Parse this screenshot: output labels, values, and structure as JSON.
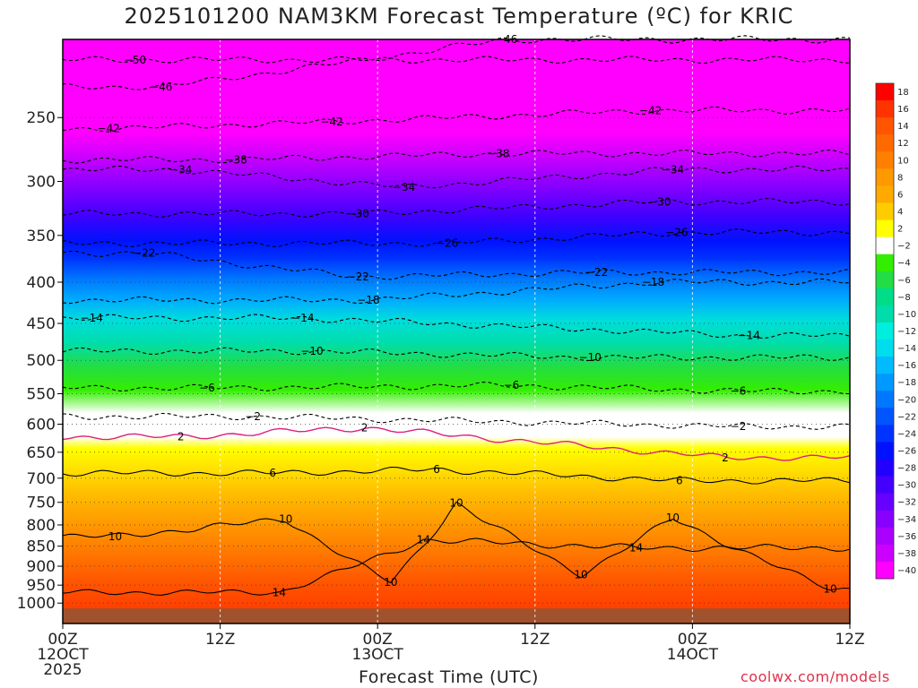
{
  "chart_data": {
    "type": "heatmap",
    "title": "2025101200 NAM3KM Forecast Temperature (ºC) for KRIC",
    "xlabel": "Forecast Time (UTC)",
    "ylabel": "",
    "credit": "coolwx.com/models",
    "y_axis": {
      "scale": "log-pressure",
      "ticks": [
        250,
        300,
        350,
        400,
        450,
        500,
        550,
        600,
        650,
        700,
        750,
        800,
        850,
        900,
        950,
        1000
      ]
    },
    "x_axis": {
      "range_hours": [
        0,
        60
      ],
      "ticks": [
        {
          "hour": 0,
          "label": "00Z",
          "sub": "12OCT",
          "year": "2025"
        },
        {
          "hour": 12,
          "label": "12Z",
          "sub": "",
          "year": ""
        },
        {
          "hour": 24,
          "label": "00Z",
          "sub": "13OCT",
          "year": ""
        },
        {
          "hour": 36,
          "label": "12Z",
          "sub": "",
          "year": ""
        },
        {
          "hour": 48,
          "label": "00Z",
          "sub": "14OCT",
          "year": ""
        },
        {
          "hour": 60,
          "label": "12Z",
          "sub": "",
          "year": ""
        }
      ]
    },
    "colorbar": {
      "labels": [
        18,
        16,
        14,
        12,
        10,
        8,
        6,
        4,
        2,
        -2,
        -4,
        -6,
        -8,
        -10,
        -12,
        -14,
        -16,
        -18,
        -20,
        -22,
        -24,
        -26,
        -28,
        -30,
        -32,
        -34,
        -36,
        -38,
        -40
      ],
      "colors": [
        "#ff0000",
        "#ff3300",
        "#ff5500",
        "#ff6a00",
        "#ff8000",
        "#ff9900",
        "#ffaa00",
        "#ffcc00",
        "#ffff00",
        "#ffffff",
        "#33ee00",
        "#22dd44",
        "#00dd88",
        "#00ddaa",
        "#00eedd",
        "#00ddee",
        "#00bbff",
        "#0099ff",
        "#0077ff",
        "#0055ff",
        "#0033ff",
        "#0011ff",
        "#2200ff",
        "#4400ff",
        "#6600ff",
        "#8800ff",
        "#aa00ff",
        "#cc00ff",
        "#ff00ff"
      ]
    },
    "contour_labels": [
      {
        "value": -50,
        "hour": 5.5,
        "p": 212
      },
      {
        "value": -46,
        "hour": 7.5,
        "p": 229
      },
      {
        "value": -46,
        "hour": 33.8,
        "p": 200
      },
      {
        "value": -42,
        "hour": 3.5,
        "p": 258
      },
      {
        "value": -42,
        "hour": 20.5,
        "p": 253
      },
      {
        "value": -42,
        "hour": 44.8,
        "p": 245
      },
      {
        "value": -38,
        "hour": 13.2,
        "p": 282
      },
      {
        "value": -38,
        "hour": 33.2,
        "p": 277
      },
      {
        "value": -34,
        "hour": 9.0,
        "p": 290
      },
      {
        "value": -34,
        "hour": 26.0,
        "p": 305
      },
      {
        "value": -34,
        "hour": 46.5,
        "p": 290
      },
      {
        "value": -30,
        "hour": 22.5,
        "p": 329
      },
      {
        "value": -30,
        "hour": 45.5,
        "p": 318
      },
      {
        "value": -26,
        "hour": 29.3,
        "p": 358
      },
      {
        "value": -26,
        "hour": 46.8,
        "p": 347
      },
      {
        "value": -22,
        "hour": 6.2,
        "p": 368
      },
      {
        "value": -22,
        "hour": 22.5,
        "p": 394
      },
      {
        "value": -22,
        "hour": 40.7,
        "p": 389
      },
      {
        "value": -18,
        "hour": 23.3,
        "p": 421
      },
      {
        "value": -18,
        "hour": 45.0,
        "p": 400
      },
      {
        "value": -14,
        "hour": 2.2,
        "p": 443
      },
      {
        "value": -14,
        "hour": 18.3,
        "p": 443
      },
      {
        "value": -14,
        "hour": 52.3,
        "p": 466
      },
      {
        "value": -10,
        "hour": 19.0,
        "p": 487
      },
      {
        "value": -10,
        "hour": 40.2,
        "p": 496
      },
      {
        "value": -6,
        "hour": 11.0,
        "p": 541
      },
      {
        "value": -6,
        "hour": 34.2,
        "p": 537
      },
      {
        "value": -6,
        "hour": 51.5,
        "p": 546
      },
      {
        "value": -2,
        "hour": 14.5,
        "p": 587
      },
      {
        "value": -2,
        "hour": 51.5,
        "p": 604
      },
      {
        "value": 2,
        "hour": 23.0,
        "p": 606
      },
      {
        "value": 2,
        "hour": 9.0,
        "p": 622
      },
      {
        "value": 2,
        "hour": 50.5,
        "p": 660
      },
      {
        "value": 6,
        "hour": 16.0,
        "p": 690
      },
      {
        "value": 6,
        "hour": 28.5,
        "p": 683
      },
      {
        "value": 6,
        "hour": 47.0,
        "p": 705
      },
      {
        "value": 10,
        "hour": 17.0,
        "p": 787
      },
      {
        "value": 10,
        "hour": 30.0,
        "p": 751
      },
      {
        "value": 10,
        "hour": 4.0,
        "p": 827
      },
      {
        "value": 10,
        "hour": 46.5,
        "p": 784
      },
      {
        "value": 10,
        "hour": 25.0,
        "p": 942
      },
      {
        "value": 10,
        "hour": 39.5,
        "p": 922
      },
      {
        "value": 10,
        "hour": 58.5,
        "p": 960
      },
      {
        "value": 14,
        "hour": 27.5,
        "p": 835
      },
      {
        "value": 14,
        "hour": 43.7,
        "p": 854
      },
      {
        "value": 14,
        "hour": 16.5,
        "p": 970
      }
    ]
  }
}
